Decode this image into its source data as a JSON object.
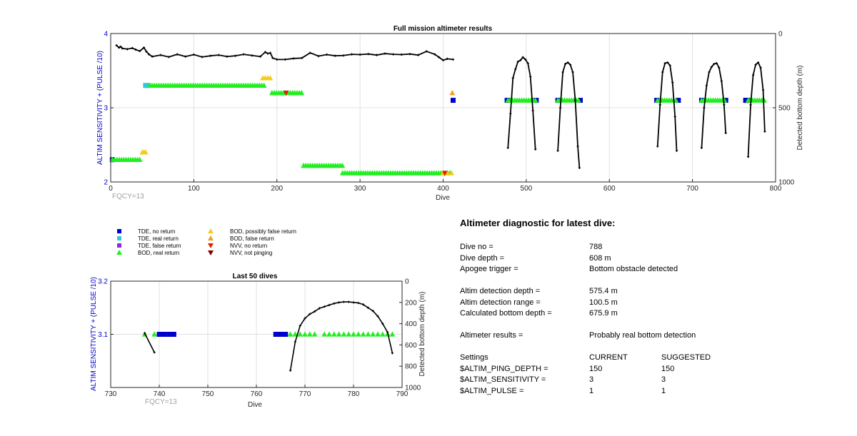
{
  "colors": {
    "tde_no_return": "#0000cc",
    "tde_real_return": "#33c6e0",
    "tde_false_return": "#8a2be2",
    "bod_real_return": "#22ee22",
    "bod_possibly_false": "#f5cb1c",
    "bod_false_return": "#f0a020",
    "nvv_no_return": "#dd2200",
    "nvv_not_pinging": "#800000",
    "bottom_depth_line": "#000000",
    "left_axis": "#0000cc"
  },
  "top_chart": {
    "title": "Full mission altimeter results",
    "xlabel": "Dive",
    "ylabel_left": "ALTIM SENSITIVITY + (PULSE /10)",
    "ylabel_right": "Detected bottom depth (m)",
    "xlim": [
      0,
      800
    ],
    "ylim_left": [
      2,
      4
    ],
    "ylim_right": [
      0,
      1000
    ],
    "xticks": [
      "0",
      "100",
      "200",
      "300",
      "400",
      "500",
      "600",
      "700",
      "800"
    ],
    "yticks_left": [
      "2",
      "3",
      "4"
    ],
    "yticks_right": [
      "0",
      "500",
      "1000"
    ],
    "fqcy": "FQCY=13"
  },
  "bottom_chart": {
    "title": "Last 50 dives",
    "xlabel": "Dive",
    "ylabel_left": "ALTIM SENSITIVITY + (PULSE /10)",
    "ylabel_right": "Detected bottom depth (m)",
    "xlim": [
      730,
      790
    ],
    "ylim_left": [
      3.0,
      3.2
    ],
    "ylim_right": [
      0,
      1000
    ],
    "xticks": [
      "730",
      "740",
      "750",
      "760",
      "770",
      "780",
      "790"
    ],
    "yticks_left": [
      "3.1",
      "3.2"
    ],
    "yticks_right": [
      "0",
      "200",
      "400",
      "600",
      "800",
      "1000"
    ],
    "fqcy": "FQCY=13"
  },
  "legend": {
    "tde_no_return": "TDE, no return",
    "tde_real_return": "TDE, real return",
    "tde_false_return": "TDE, false return",
    "bod_real_return": "BOD, real return",
    "bod_possibly_false": "BOD, possibly false return",
    "bod_false_return": "BOD, false return",
    "nvv_no_return": "NVV, no return",
    "nvv_not_pinging": "NVV, not pinging"
  },
  "chart_data": [
    {
      "type": "scatter",
      "title": "Full mission altimeter results",
      "xlabel": "Dive",
      "ylabel": "ALTIM SENSITIVITY + (PULSE /10)",
      "y2label": "Detected bottom depth (m)",
      "xlim": [
        0,
        800
      ],
      "ylim": [
        2,
        4
      ],
      "y2lim": [
        0,
        1000
      ],
      "grid": true,
      "series": [
        {
          "name": "TDE, no return",
          "marker": "square",
          "axis": "left",
          "points": [
            [
              2,
              2.3
            ],
            [
              412,
              3.1
            ],
            [
              477,
              3.1
            ],
            [
              512,
              3.1
            ],
            [
              538,
              3.1
            ],
            [
              565,
              3.1
            ],
            [
              657,
              3.1
            ],
            [
              683,
              3.1
            ],
            [
              711,
              3.1
            ],
            [
              740,
              3.1
            ],
            [
              764,
              3.1
            ],
            [
              765,
              3.1
            ],
            [
              766,
              3.1
            ]
          ]
        },
        {
          "name": "TDE, real return",
          "marker": "square",
          "axis": "left",
          "points": [
            [
              42,
              3.3
            ],
            [
              45,
              3.3
            ]
          ]
        },
        {
          "name": "BOD, real return",
          "marker": "triangle",
          "axis": "left",
          "segments": [
            [
              2,
              2.3,
              37
            ],
            [
              47,
              3.3,
              186
            ],
            [
              194,
              3.2,
              232
            ],
            [
              232,
              2.22,
              279
            ],
            [
              279,
              2.12,
              409
            ],
            [
              478,
              3.1,
              511
            ],
            [
              538,
              3.1,
              563
            ],
            [
              658,
              3.1,
              681
            ],
            [
              711,
              3.1,
              739
            ],
            [
              767,
              3.1,
              788
            ]
          ]
        },
        {
          "name": "BOD, possibly false return",
          "marker": "triangle",
          "axis": "left",
          "points": [
            [
              38,
              2.4
            ],
            [
              40,
              2.4
            ],
            [
              42,
              2.4
            ],
            [
              183,
              3.4
            ],
            [
              186,
              3.4
            ],
            [
              189,
              3.4
            ],
            [
              192,
              3.4
            ],
            [
              400,
              2.12
            ],
            [
              405,
              2.12
            ],
            [
              410,
              2.12
            ]
          ]
        },
        {
          "name": "BOD, false return",
          "marker": "triangle",
          "axis": "left",
          "points": [
            [
              411,
              3.2
            ]
          ]
        },
        {
          "name": "NVV, no return",
          "marker": "triangle-down",
          "axis": "left",
          "points": [
            [
              211,
              3.2
            ],
            [
              402,
              2.12
            ]
          ]
        },
        {
          "name": "Detected bottom depth",
          "marker": "line",
          "axis": "right",
          "x": [
            7,
            10,
            12,
            14,
            20,
            26,
            30,
            35,
            40,
            43,
            46,
            50,
            60,
            70,
            80,
            90,
            100,
            110,
            120,
            130,
            140,
            150,
            160,
            170,
            180,
            186,
            189,
            192,
            195,
            200,
            210,
            220,
            230,
            240,
            250,
            260,
            270,
            280,
            290,
            300,
            310,
            320,
            330,
            340,
            350,
            360,
            370,
            380,
            390,
            395,
            400,
            405,
            412
          ],
          "y": [
            80,
            95,
            88,
            100,
            105,
            98,
            108,
            118,
            95,
            122,
            140,
            155,
            145,
            158,
            140,
            155,
            142,
            158,
            150,
            145,
            155,
            150,
            140,
            148,
            155,
            125,
            135,
            130,
            165,
            175,
            175,
            168,
            165,
            130,
            152,
            142,
            150,
            148,
            140,
            142,
            138,
            145,
            135,
            140,
            142,
            138,
            145,
            120,
            140,
            160,
            180,
            170,
            175
          ]
        },
        {
          "name": "Detected bottom depth (dives 477-512)",
          "marker": "line",
          "axis": "right",
          "x": [
            478,
            481,
            484,
            487,
            490,
            493,
            496,
            499,
            502,
            505,
            508,
            511
          ],
          "y": [
            770,
            540,
            300,
            240,
            190,
            180,
            160,
            175,
            200,
            290,
            520,
            780
          ]
        },
        {
          "name": "Detected bottom depth (dives 538-565)",
          "marker": "line",
          "axis": "right",
          "x": [
            538,
            541,
            544,
            547,
            550,
            553,
            556,
            559,
            562,
            564
          ],
          "y": [
            790,
            500,
            260,
            205,
            195,
            210,
            260,
            450,
            760,
            905
          ]
        },
        {
          "name": "Detected bottom depth (dives 657-683)",
          "marker": "line",
          "axis": "right",
          "x": [
            658,
            661,
            664,
            667,
            670,
            673,
            676,
            679,
            681
          ],
          "y": [
            760,
            480,
            260,
            200,
            195,
            215,
            330,
            560,
            790
          ]
        },
        {
          "name": "Detected bottom depth (dives 711-740)",
          "marker": "line",
          "axis": "right",
          "x": [
            711,
            714,
            717,
            720,
            723,
            726,
            729,
            732,
            735,
            738,
            740
          ],
          "y": [
            770,
            500,
            350,
            260,
            225,
            205,
            200,
            230,
            320,
            480,
            670
          ]
        },
        {
          "name": "Detected bottom depth (dives 764-788)",
          "marker": "line",
          "axis": "right",
          "x": [
            767,
            770,
            773,
            776,
            779,
            782,
            785,
            787
          ],
          "y": [
            830,
            480,
            280,
            210,
            195,
            230,
            380,
            660
          ]
        }
      ]
    },
    {
      "type": "scatter",
      "title": "Last 50 dives",
      "xlabel": "Dive",
      "ylabel": "ALTIM SENSITIVITY + (PULSE /10)",
      "y2label": "Detected bottom depth (m)",
      "xlim": [
        730,
        790
      ],
      "ylim": [
        3.0,
        3.2
      ],
      "y2lim": [
        0,
        1000
      ],
      "grid": true,
      "series": [
        {
          "name": "TDE, no return",
          "marker": "square",
          "axis": "left",
          "x": [
            740,
            741,
            742,
            743,
            764,
            765,
            766
          ],
          "y": [
            3.1,
            3.1,
            3.1,
            3.1,
            3.1,
            3.1,
            3.1
          ]
        },
        {
          "name": "BOD, real return",
          "marker": "triangle",
          "axis": "left",
          "x": [
            737,
            739,
            767,
            768,
            769,
            770,
            771,
            772,
            774,
            775,
            776,
            777,
            778,
            779,
            780,
            781,
            782,
            783,
            784,
            785,
            786,
            787,
            788
          ],
          "y": [
            3.1,
            3.1,
            3.1,
            3.1,
            3.1,
            3.1,
            3.1,
            3.1,
            3.1,
            3.1,
            3.1,
            3.1,
            3.1,
            3.1,
            3.1,
            3.1,
            3.1,
            3.1,
            3.1,
            3.1,
            3.1,
            3.1,
            3.1
          ]
        },
        {
          "name": "Detected bottom depth (dives 737-739)",
          "marker": "line",
          "axis": "right",
          "x": [
            737,
            739
          ],
          "y": [
            490,
            670
          ]
        },
        {
          "name": "Detected bottom depth (dives 767-788)",
          "marker": "line",
          "axis": "right",
          "x": [
            767,
            768,
            769,
            770,
            771,
            772,
            773,
            774,
            775,
            776,
            777,
            778,
            779,
            780,
            781,
            782,
            783,
            784,
            785,
            786,
            787,
            788
          ],
          "y": [
            840,
            570,
            420,
            350,
            310,
            285,
            255,
            240,
            225,
            210,
            200,
            195,
            195,
            200,
            205,
            220,
            250,
            280,
            330,
            400,
            480,
            676
          ]
        }
      ]
    }
  ],
  "diagnostic": {
    "title": "Altimeter diagnostic for latest dive:",
    "dive_no_label": "Dive no =",
    "dive_no_value": "788",
    "dive_depth_label": "Dive depth =",
    "dive_depth_value": "608 m",
    "apogee_label": "Apogee trigger =",
    "apogee_value": "Bottom obstacle detected",
    "altim_det_depth_label": "Altim detection depth =",
    "altim_det_depth_value": "575.4 m",
    "altim_det_range_label": "Altim detection range =",
    "altim_det_range_value": "100.5 m",
    "calc_bottom_label": "Calculated bottom depth =",
    "calc_bottom_value": "675.9 m",
    "results_label": "Altimeter results =",
    "results_value": "Probably real bottom detection",
    "settings_label": "Settings",
    "current_label": "CURRENT",
    "suggested_label": "SUGGESTED",
    "settings": [
      {
        "name": "$ALTIM_PING_DEPTH =",
        "current": "150",
        "suggested": "150"
      },
      {
        "name": "$ALTIM_SENSITIVITY =",
        "current": "3",
        "suggested": "3"
      },
      {
        "name": "$ALTIM_PULSE =",
        "current": "1",
        "suggested": "1"
      }
    ]
  }
}
